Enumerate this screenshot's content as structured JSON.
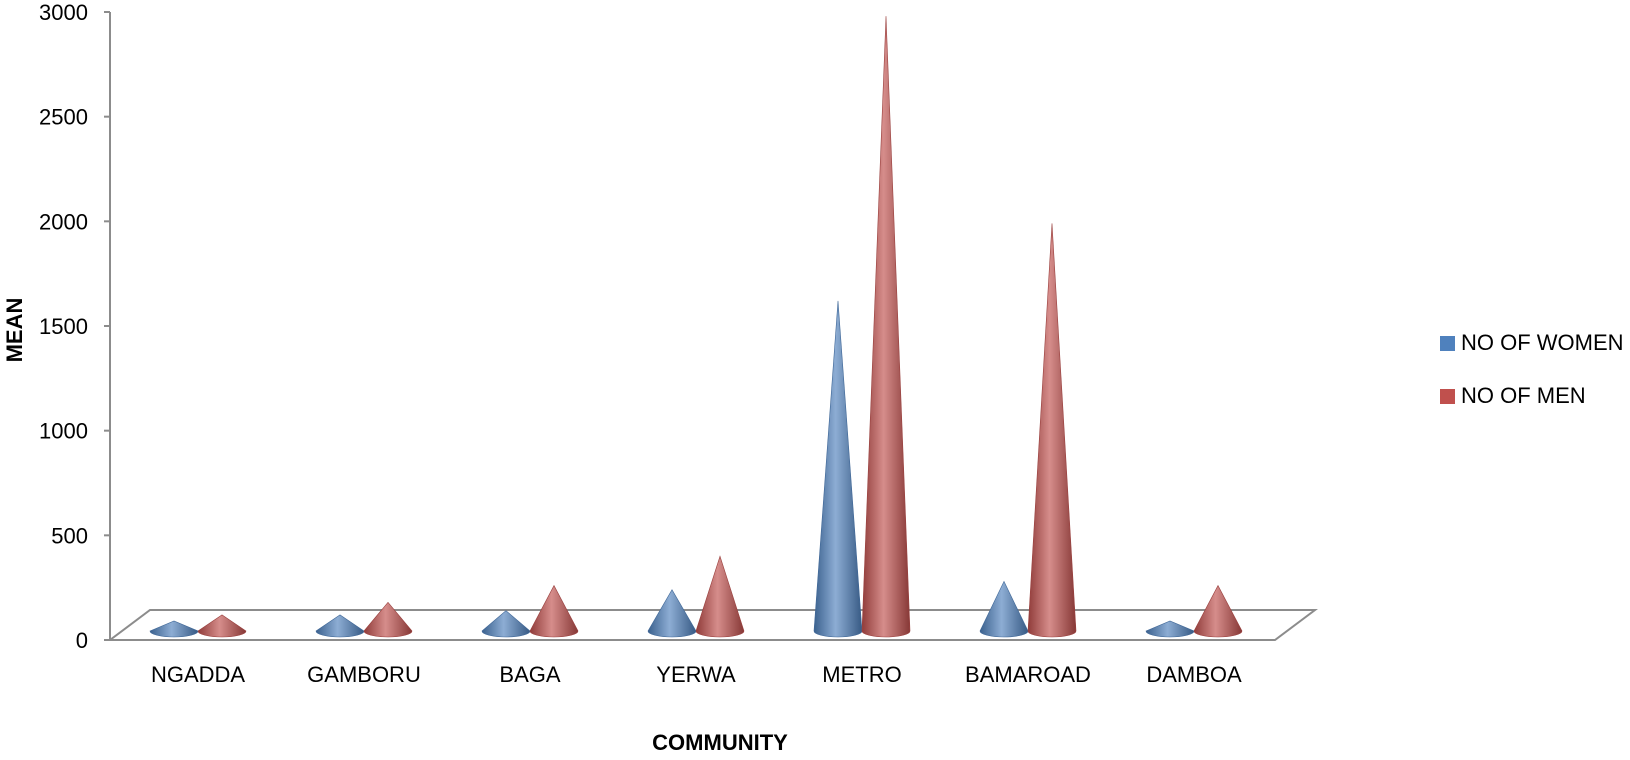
{
  "chart_data": {
    "type": "bar",
    "subtype": "3d-cone",
    "title": "",
    "xlabel": "COMMUNITY",
    "ylabel": "MEAN",
    "ylim": [
      0,
      3000
    ],
    "yticks": [
      0,
      500,
      1000,
      1500,
      2000,
      2500,
      3000
    ],
    "categories": [
      "NGADDA",
      "GAMBORU",
      "BAGA",
      "YERWA",
      "METRO",
      "BAMAROAD",
      "DAMBOA"
    ],
    "series": [
      {
        "name": "NO OF WOMEN",
        "color": "#4F81BD",
        "values": [
          80,
          120,
          140,
          240,
          1620,
          280,
          90
        ]
      },
      {
        "name": "NO OF MEN",
        "color": "#C0504D",
        "values": [
          120,
          180,
          260,
          400,
          2980,
          1990,
          260
        ]
      }
    ],
    "grid": false,
    "legend_position": "right"
  }
}
